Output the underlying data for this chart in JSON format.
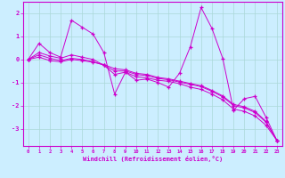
{
  "xlabel": "Windchill (Refroidissement éolien,°C)",
  "bg_color": "#cceeff",
  "line_color": "#cc00cc",
  "grid_color": "#aad8d8",
  "x_values": [
    0,
    1,
    2,
    3,
    4,
    5,
    6,
    7,
    8,
    9,
    10,
    11,
    12,
    13,
    14,
    15,
    16,
    17,
    18,
    19,
    20,
    21,
    22,
    23
  ],
  "line1": [
    0.0,
    0.7,
    0.3,
    0.1,
    1.7,
    1.4,
    1.1,
    0.3,
    -1.5,
    -0.55,
    -0.9,
    -0.85,
    -1.0,
    -1.2,
    -0.6,
    0.55,
    2.25,
    1.35,
    0.05,
    -2.2,
    -1.7,
    -1.6,
    -2.5,
    -3.5
  ],
  "line2": [
    0.0,
    0.3,
    0.15,
    0.05,
    0.2,
    0.1,
    0.0,
    -0.25,
    -0.65,
    -0.55,
    -0.75,
    -0.8,
    -0.9,
    -0.95,
    -1.05,
    -1.2,
    -1.3,
    -1.5,
    -1.75,
    -2.15,
    -2.25,
    -2.45,
    -2.85,
    -3.5
  ],
  "line3": [
    0.0,
    0.2,
    0.05,
    -0.05,
    0.05,
    0.0,
    -0.1,
    -0.25,
    -0.5,
    -0.5,
    -0.65,
    -0.7,
    -0.82,
    -0.88,
    -0.98,
    -1.08,
    -1.18,
    -1.38,
    -1.62,
    -2.0,
    -2.1,
    -2.3,
    -2.72,
    -3.5
  ],
  "line4": [
    0.0,
    0.1,
    -0.05,
    -0.1,
    0.0,
    -0.05,
    -0.12,
    -0.22,
    -0.4,
    -0.45,
    -0.6,
    -0.65,
    -0.78,
    -0.84,
    -0.94,
    -1.04,
    -1.14,
    -1.34,
    -1.58,
    -1.95,
    -2.05,
    -2.25,
    -2.68,
    -3.5
  ],
  "ylim": [
    -3.75,
    2.5
  ],
  "yticks": [
    -3,
    -2,
    -1,
    0,
    1,
    2
  ],
  "xlim": [
    -0.5,
    23.5
  ]
}
